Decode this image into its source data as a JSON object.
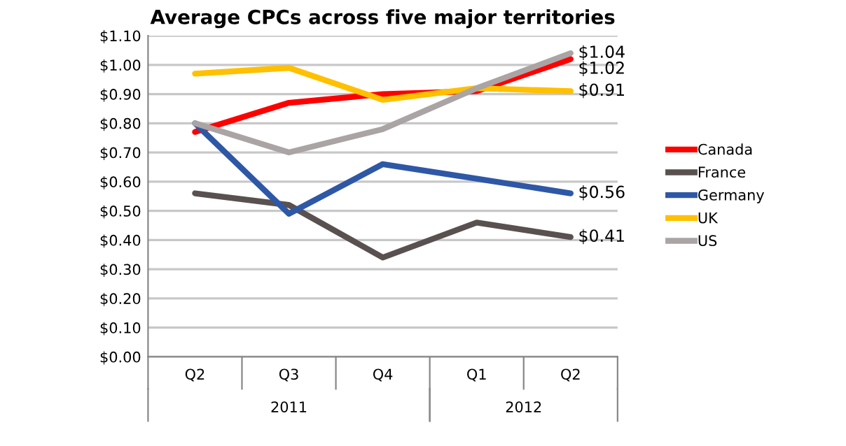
{
  "chart_data": {
    "type": "line",
    "title": "Average CPCs across five major territories",
    "categories": [
      "Q2",
      "Q3",
      "Q4",
      "Q1",
      "Q2"
    ],
    "series": [
      {
        "name": "Canada",
        "color": "#ff0000",
        "values": [
          0.77,
          0.87,
          0.9,
          0.91,
          1.02
        ],
        "value_labels": [
          null,
          null,
          null,
          null,
          "$1.02"
        ]
      },
      {
        "name": "France",
        "color": "#595150",
        "values": [
          0.56,
          0.52,
          0.34,
          0.46,
          0.41
        ],
        "value_labels": [
          null,
          null,
          null,
          null,
          "$0.41"
        ]
      },
      {
        "name": "Germany",
        "color": "#2e58a6",
        "values": [
          0.8,
          0.49,
          0.66,
          0.61,
          0.56
        ],
        "value_labels": [
          null,
          null,
          null,
          null,
          "$0.56"
        ]
      },
      {
        "name": "UK",
        "color": "#ffc000",
        "values": [
          0.97,
          0.99,
          0.88,
          0.92,
          0.91
        ],
        "value_labels": [
          null,
          null,
          null,
          null,
          "$0.91"
        ]
      },
      {
        "name": "US",
        "color": "#aaa4a4",
        "values": [
          0.8,
          0.7,
          0.78,
          0.92,
          1.04
        ],
        "value_labels": [
          null,
          null,
          null,
          null,
          "$1.04"
        ]
      }
    ],
    "ylim": [
      0,
      1.1
    ],
    "yticks": [
      {
        "value": 0,
        "label": "$0.00"
      },
      {
        "value": 0.1,
        "label": "$0.10"
      },
      {
        "value": 0.2,
        "label": "$0.20"
      },
      {
        "value": 0.3,
        "label": "$0.30"
      },
      {
        "value": 0.4,
        "label": "$0.40"
      },
      {
        "value": 0.5,
        "label": "$0.50"
      },
      {
        "value": 0.6,
        "label": "$0.60"
      },
      {
        "value": 0.7,
        "label": "$0.70"
      },
      {
        "value": 0.8,
        "label": "$0.80"
      },
      {
        "value": 0.9,
        "label": "$0.90"
      },
      {
        "value": 1.0,
        "label": "$1.00"
      },
      {
        "value": 1.1,
        "label": "$1.10"
      }
    ],
    "grid": "y",
    "legend": "right",
    "marker": "none",
    "line_style": "solid",
    "annotations": [
      "2011",
      "2012"
    ]
  }
}
